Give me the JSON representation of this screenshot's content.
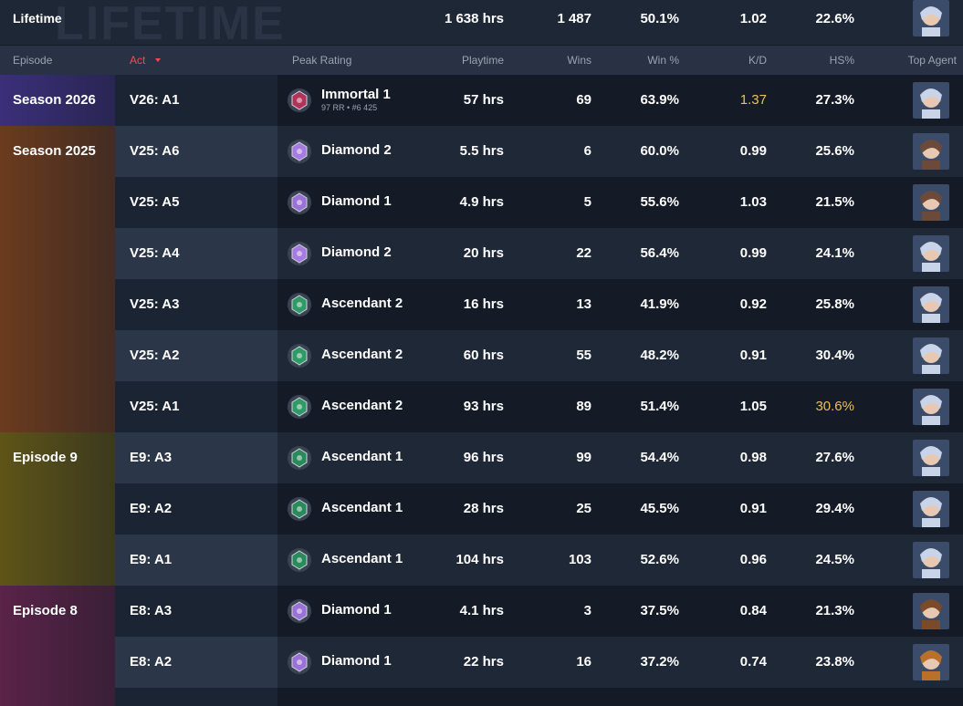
{
  "lifetime": {
    "label": "Lifetime",
    "watermark": "LIFETIME",
    "playtime": "1 638 hrs",
    "wins": "1 487",
    "win_pct": "50.1%",
    "kd": "1.02",
    "hs": "22.6%",
    "agent_color": "#c9d4e8"
  },
  "headers": {
    "episode": "Episode",
    "act": "Act",
    "peak": "Peak Rating",
    "playtime": "Playtime",
    "wins": "Wins",
    "win_pct": "Win %",
    "kd": "K/D",
    "hs": "HS%",
    "agent": "Top Agent"
  },
  "highlight_color": "#e8c15a",
  "episodes": [
    {
      "name": "Season 2026",
      "color": "#3b2f7a",
      "acts": [
        {
          "act": "V26: A1",
          "rank": "Immortal 1",
          "rr": "97 RR • #6 425",
          "rank_color": "#b0335a",
          "playtime": "57 hrs",
          "wins": "69",
          "win_pct": "63.9%",
          "kd": "1.37",
          "hs": "27.3%",
          "highlight": [
            "kd"
          ],
          "agent_color": "#c9d4e8"
        }
      ]
    },
    {
      "name": "Season 2025",
      "color": "#6b3b1e",
      "acts": [
        {
          "act": "V25: A6",
          "rank": "Diamond 2",
          "rank_color": "#a57be0",
          "playtime": "5.5 hrs",
          "wins": "6",
          "win_pct": "60.0%",
          "kd": "0.99",
          "hs": "25.6%",
          "agent_color": "#6b4a3a"
        },
        {
          "act": "V25: A5",
          "rank": "Diamond 1",
          "rank_color": "#9a72d6",
          "playtime": "4.9 hrs",
          "wins": "5",
          "win_pct": "55.6%",
          "kd": "1.03",
          "hs": "21.5%",
          "agent_color": "#6b4a3a"
        },
        {
          "act": "V25: A4",
          "rank": "Diamond 2",
          "rank_color": "#a57be0",
          "playtime": "20 hrs",
          "wins": "22",
          "win_pct": "56.4%",
          "kd": "0.99",
          "hs": "24.1%",
          "agent_color": "#c9d4e8"
        },
        {
          "act": "V25: A3",
          "rank": "Ascendant 2",
          "rank_color": "#2f9a66",
          "playtime": "16 hrs",
          "wins": "13",
          "win_pct": "41.9%",
          "kd": "0.92",
          "hs": "25.8%",
          "agent_color": "#c9d4e8"
        },
        {
          "act": "V25: A2",
          "rank": "Ascendant 2",
          "rank_color": "#2f9a66",
          "playtime": "60 hrs",
          "wins": "55",
          "win_pct": "48.2%",
          "kd": "0.91",
          "hs": "30.4%",
          "agent_color": "#c9d4e8"
        },
        {
          "act": "V25: A1",
          "rank": "Ascendant 2",
          "rank_color": "#2f9a66",
          "playtime": "93 hrs",
          "wins": "89",
          "win_pct": "51.4%",
          "kd": "1.05",
          "hs": "30.6%",
          "highlight": [
            "hs"
          ],
          "agent_color": "#c9d4e8"
        }
      ]
    },
    {
      "name": "Episode 9",
      "color": "#5e5418",
      "acts": [
        {
          "act": "E9: A3",
          "rank": "Ascendant 1",
          "rank_color": "#2a8a5c",
          "playtime": "96 hrs",
          "wins": "99",
          "win_pct": "54.4%",
          "kd": "0.98",
          "hs": "27.6%",
          "agent_color": "#c9d4e8"
        },
        {
          "act": "E9: A2",
          "rank": "Ascendant 1",
          "rank_color": "#2a8a5c",
          "playtime": "28 hrs",
          "wins": "25",
          "win_pct": "45.5%",
          "kd": "0.91",
          "hs": "29.4%",
          "agent_color": "#c9d4e8"
        },
        {
          "act": "E9: A1",
          "rank": "Ascendant 1",
          "rank_color": "#2a8a5c",
          "playtime": "104 hrs",
          "wins": "103",
          "win_pct": "52.6%",
          "kd": "0.96",
          "hs": "24.5%",
          "agent_color": "#c9d4e8"
        }
      ]
    },
    {
      "name": "Episode 8",
      "color": "#5a2348",
      "acts": [
        {
          "act": "E8: A3",
          "rank": "Diamond 1",
          "rank_color": "#9a72d6",
          "playtime": "4.1 hrs",
          "wins": "3",
          "win_pct": "37.5%",
          "kd": "0.84",
          "hs": "21.3%",
          "agent_color": "#7a4a2a"
        },
        {
          "act": "E8: A2",
          "rank": "Diamond 1",
          "rank_color": "#9a72d6",
          "playtime": "22 hrs",
          "wins": "16",
          "win_pct": "37.2%",
          "kd": "0.74",
          "hs": "23.8%",
          "agent_color": "#b8702a"
        }
      ]
    }
  ]
}
